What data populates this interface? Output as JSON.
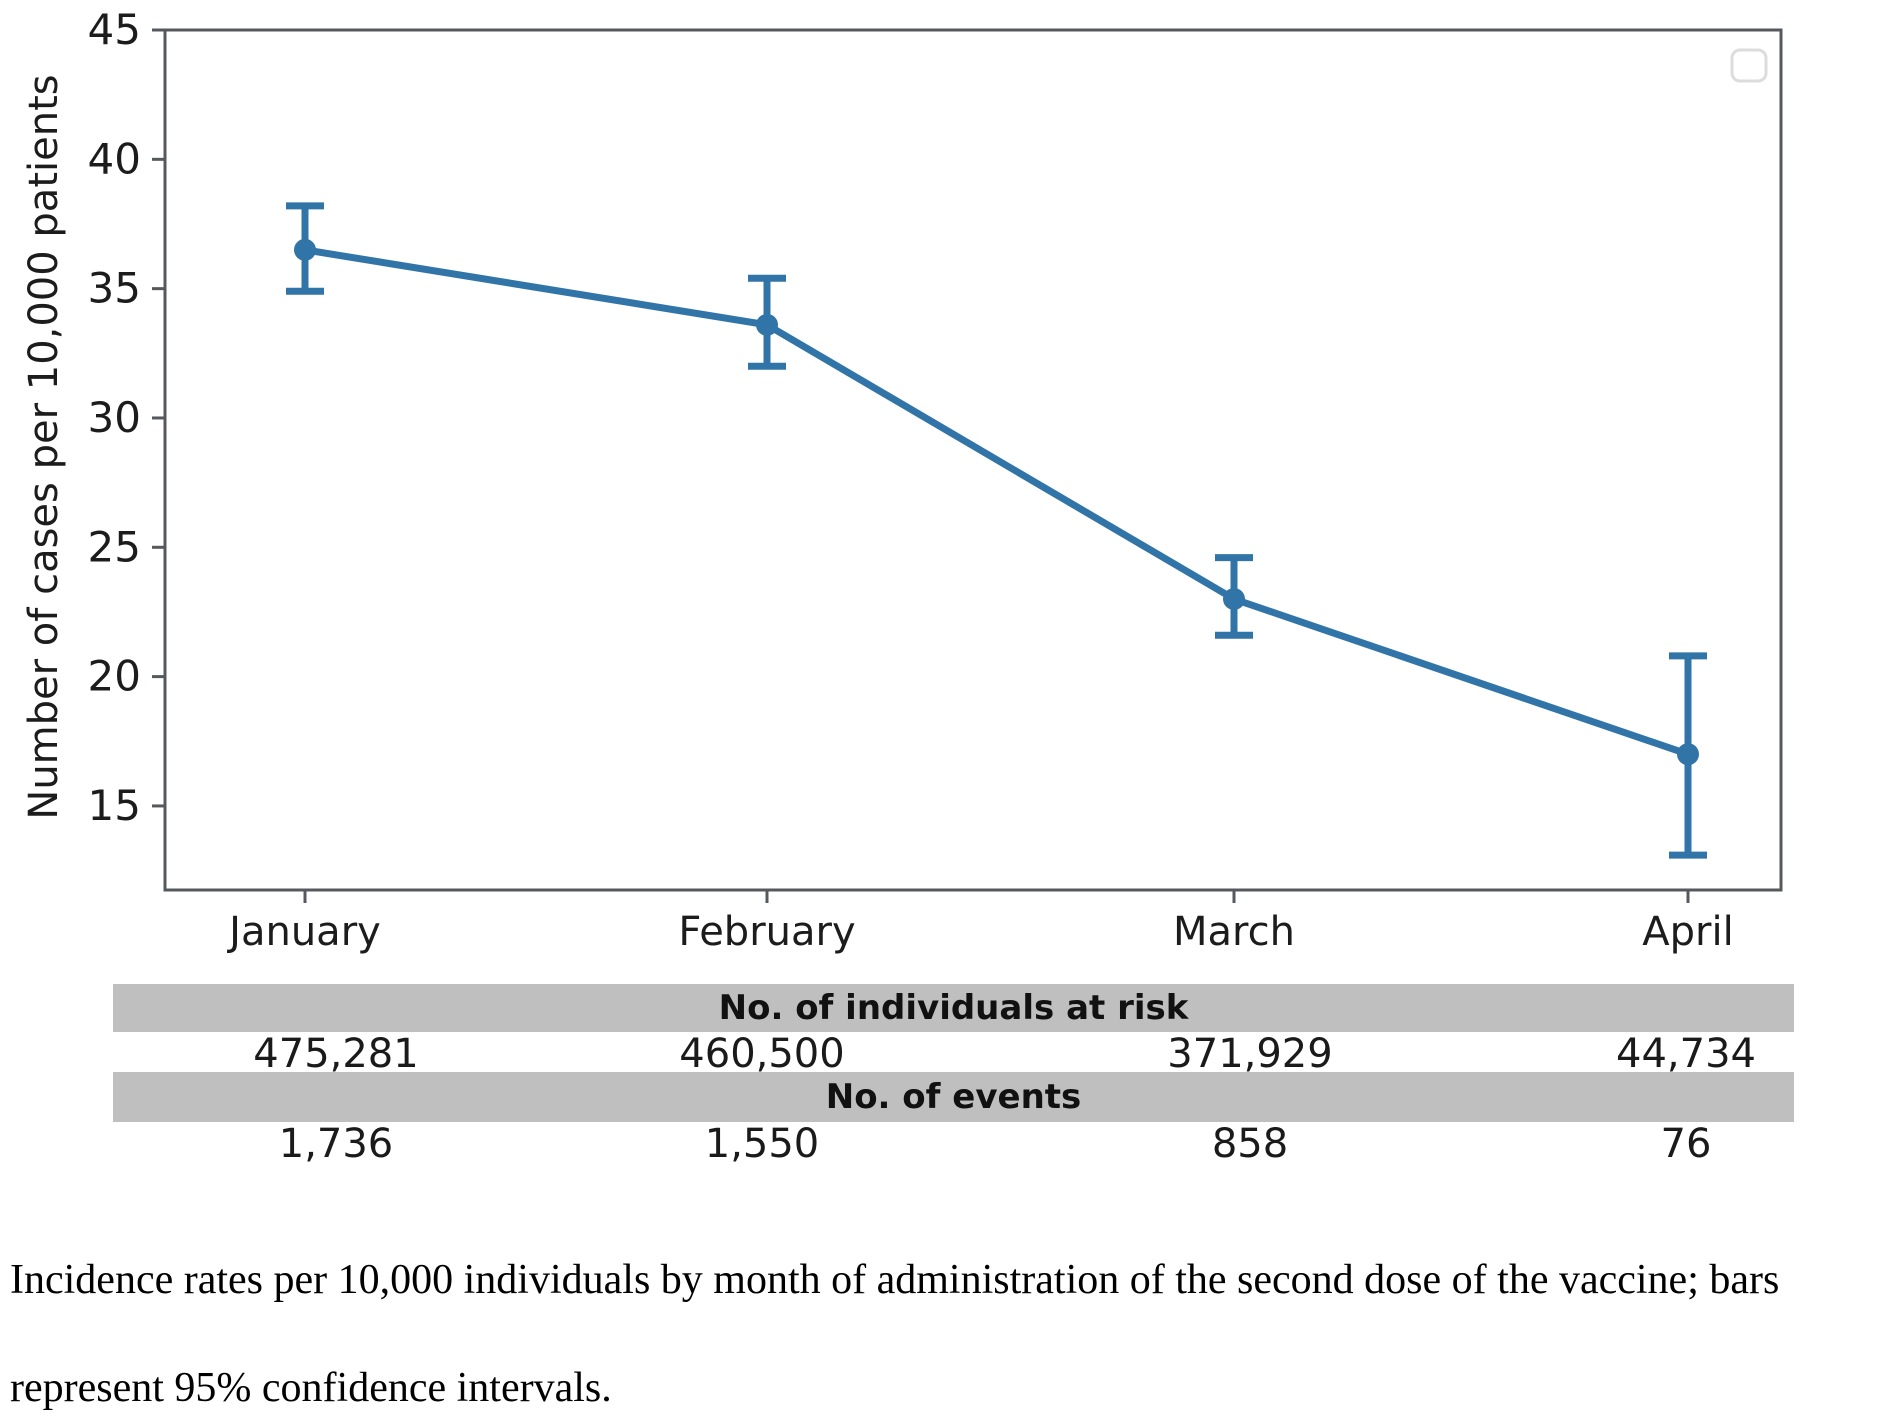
{
  "chart_data": {
    "type": "line",
    "categories": [
      "January",
      "February",
      "March",
      "April"
    ],
    "series": [
      {
        "name": "incidence-rate",
        "values": [
          36.5,
          33.6,
          23.0,
          17.0
        ],
        "ci_low": [
          34.9,
          32.0,
          21.6,
          13.1
        ],
        "ci_high": [
          38.2,
          35.4,
          24.6,
          20.8
        ]
      }
    ],
    "title": "",
    "xlabel": "",
    "ylabel": "Number of cases per 10,000 patients",
    "ylim": [
      11.75,
      45
    ],
    "yticks": [
      15,
      20,
      25,
      30,
      35,
      40,
      45
    ],
    "grid": false,
    "legend_position": "upper right (empty box)",
    "line_color": "#3174A7",
    "marker": "circle",
    "error_bars": "95% confidence intervals"
  },
  "table": {
    "risk_header": "No. of individuals at risk",
    "risk_values": [
      "475,281",
      "460,500",
      "371,929",
      "44,734"
    ],
    "events_header": "No. of events",
    "events_values": [
      "1,736",
      "1,550",
      "858",
      "76"
    ],
    "band_color": "#BFBFBF"
  },
  "caption": {
    "lines": [
      "Incidence rates per 10,000 individuals by month of administration of the second dose of the vaccine; bars",
      "represent 95% confidence intervals."
    ]
  }
}
